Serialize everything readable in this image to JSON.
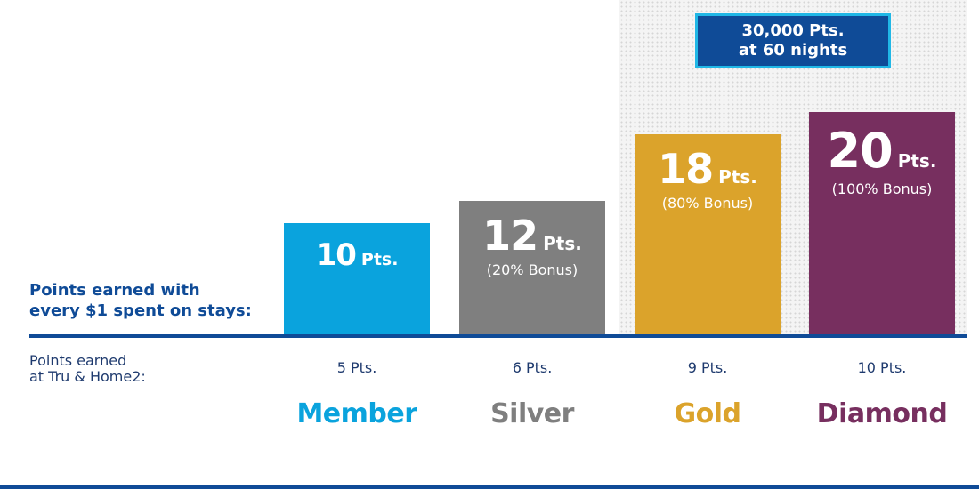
{
  "callout": {
    "line1": "30,000 Pts.",
    "line2": "at 60 nights"
  },
  "left_labels": {
    "earned_line1": "Points earned with",
    "earned_line2": "every $1 spent on stays:",
    "tru_line1": "Points earned",
    "tru_line2": "at Tru & Home2:"
  },
  "colors": {
    "navy": "#0f4b97",
    "member": "#0aa3dd",
    "silver": "#7f7f7f",
    "gold": "#dba32b",
    "diamond": "#772f5f"
  },
  "chart_data": {
    "type": "bar",
    "categories": [
      "Member",
      "Silver",
      "Gold",
      "Diamond"
    ],
    "series": [
      {
        "values": [
          10,
          12,
          18,
          20
        ]
      }
    ],
    "bar_labels": [
      "10",
      "12",
      "18",
      "20"
    ],
    "bar_unit": "Pts.",
    "bonus_labels": [
      "",
      "(20% Bonus)",
      "(80% Bonus)",
      "(100% Bonus)"
    ],
    "tru_home2_points": [
      "5 Pts.",
      "6 Pts.",
      "9 Pts.",
      "10 Pts."
    ],
    "ylim": [
      0,
      20
    ],
    "grid": false
  }
}
